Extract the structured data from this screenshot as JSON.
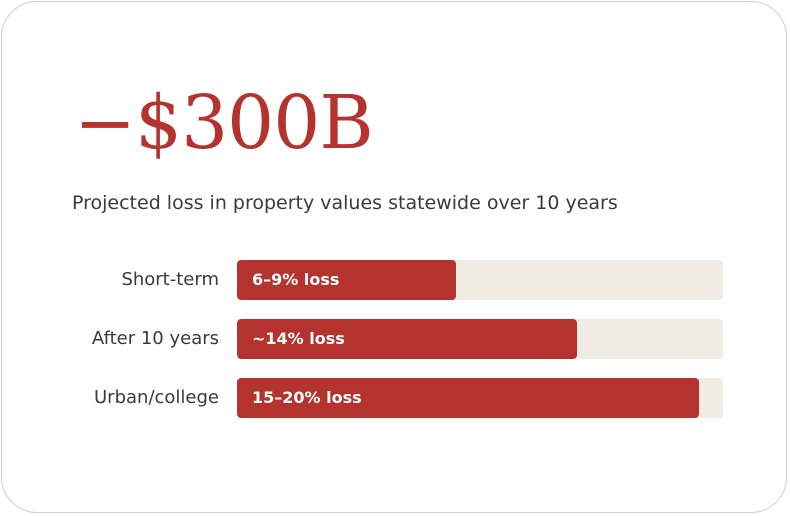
{
  "headline": "−$300B",
  "subtitle": "Projected loss in property values statewide over 10 years",
  "colors": {
    "accent": "#b5332e",
    "track": "#f0ece4",
    "text": "#3a3a3a"
  },
  "chart_data": {
    "type": "bar",
    "orientation": "horizontal",
    "categories": [
      "Short-term",
      "After 10 years",
      "Urban/college"
    ],
    "bar_labels": [
      "6–9% loss",
      "~14% loss",
      "15–20% loss"
    ],
    "values": [
      0.45,
      0.7,
      0.95
    ],
    "grid": false,
    "legend": "none"
  }
}
